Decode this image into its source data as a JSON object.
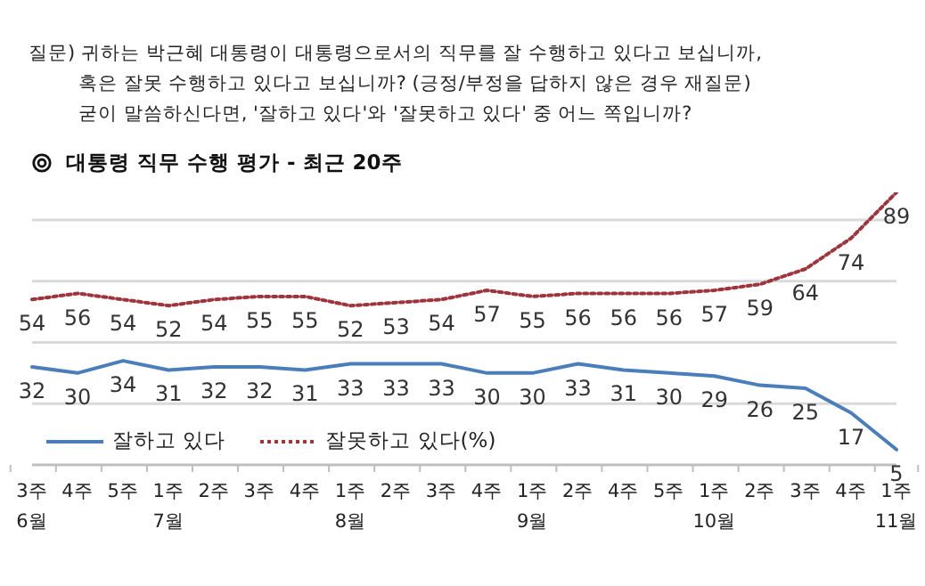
{
  "chart_data": {
    "type": "line",
    "title": "대통령 직무 수행 평가 - 최근 20주",
    "annotations": [
      "질문) 귀하는 박근혜 대통령이 대통령으로서의 직무를 잘 수행하고 있다고 보십니까, 혹은 잘못 수행하고 있다고 보십니까? (긍정/부정을 답하지 않은 경우 재질문) 굳이 말씀하신다면, '잘하고 있다'와 '잘못하고 있다' 중 어느 쪽입니까?"
    ],
    "categories": [
      "3주\n6월",
      "4주",
      "5주",
      "1주\n7월",
      "2주",
      "3주",
      "4주",
      "1주\n8월",
      "2주",
      "3주",
      "4주",
      "1주\n9월",
      "2주",
      "4주",
      "5주",
      "1주\n10월",
      "2주",
      "3주",
      "4주",
      "1주\n11월"
    ],
    "series": [
      {
        "name": "잘하고 있다",
        "color": "#4a7ebb",
        "line_style": "solid",
        "values": [
          32,
          30,
          34,
          31,
          32,
          32,
          31,
          33,
          33,
          33,
          30,
          30,
          33,
          31,
          30,
          29,
          26,
          25,
          17,
          5
        ]
      },
      {
        "name": "잘못하고 있다(%)",
        "color": "#a0343c",
        "line_style": "dotted",
        "values": [
          54,
          56,
          54,
          52,
          54,
          55,
          55,
          52,
          53,
          54,
          57,
          55,
          56,
          56,
          56,
          57,
          59,
          64,
          74,
          89
        ]
      }
    ],
    "yticks": [
      {
        "value": 20,
        "label": null
      },
      {
        "value": 40,
        "label": null
      },
      {
        "value": 60,
        "label": null
      },
      {
        "value": 80,
        "label": null
      }
    ],
    "grid": "y",
    "tick_labels": "x",
    "legend": "bottom left",
    "marker": "none",
    "data_labels": true
  }
}
